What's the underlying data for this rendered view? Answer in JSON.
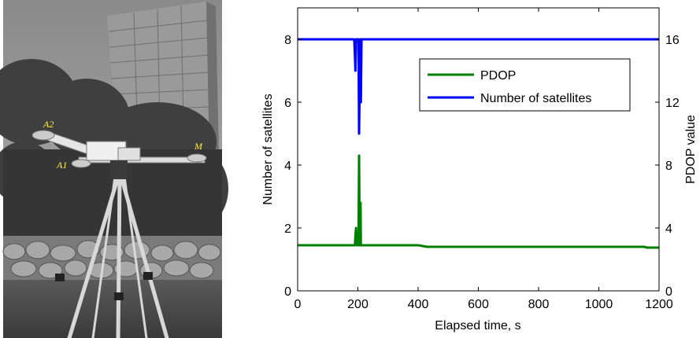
{
  "photo": {
    "labels": [
      "A2",
      "M",
      "A1"
    ]
  },
  "chart_data": {
    "type": "line",
    "xlabel": "Elapsed time, s",
    "ylabel_left": "Number of satellites",
    "ylabel_right": "PDOP value",
    "xlim": [
      0,
      1200
    ],
    "ylim_left": [
      0,
      9
    ],
    "ylim_right": [
      0,
      18
    ],
    "x_ticks": [
      0,
      200,
      400,
      600,
      800,
      1000,
      1200
    ],
    "y_left_ticks": [
      0,
      2,
      4,
      6,
      8
    ],
    "y_right_ticks": [
      0,
      4,
      8,
      12,
      16
    ],
    "grid": false,
    "legend_position": "top-right",
    "series": [
      {
        "name": "PDOP",
        "axis": "right",
        "color": "#007f00",
        "x": [
          0,
          190,
          192,
          194,
          196,
          198,
          200,
          202,
          204,
          206,
          208,
          209,
          210,
          212,
          214,
          400,
          430,
          600,
          800,
          1000,
          1150,
          1160,
          1200
        ],
        "y": [
          2.9,
          2.9,
          3.5,
          4.0,
          2.9,
          2.9,
          2.9,
          2.9,
          8.6,
          2.9,
          2.9,
          5.6,
          2.9,
          2.9,
          2.9,
          2.9,
          2.8,
          2.8,
          2.8,
          2.8,
          2.8,
          2.75,
          2.75
        ]
      },
      {
        "name": "Number of satellites",
        "axis": "left",
        "color": "#0000ff",
        "x": [
          0,
          185,
          188,
          190,
          192,
          194,
          196,
          198,
          200,
          202,
          204,
          206,
          208,
          210,
          212,
          214,
          1200
        ],
        "y": [
          8,
          8,
          8,
          7.5,
          7.0,
          8,
          8,
          8,
          8,
          8,
          5.0,
          6.5,
          8,
          6.0,
          8,
          8,
          8
        ]
      }
    ]
  }
}
